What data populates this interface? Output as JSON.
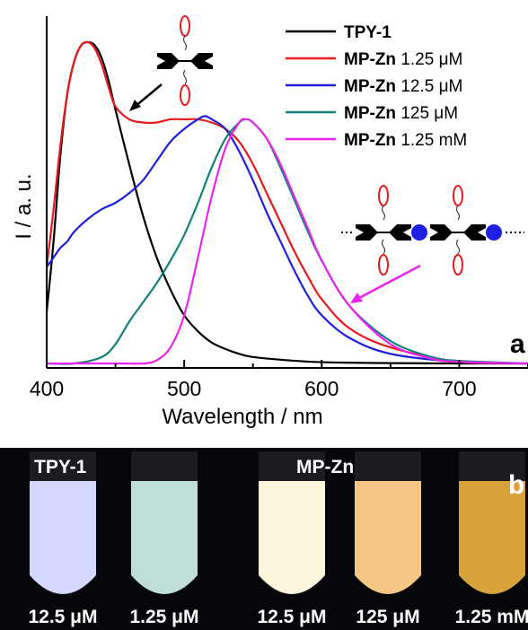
{
  "chart_data": {
    "type": "line",
    "title": "",
    "xlabel": "Wavelength / nm",
    "ylabel": "I / a. u.",
    "xlim": [
      400,
      750
    ],
    "ylim": [
      0,
      1.0
    ],
    "x_ticks": [
      "400",
      "500",
      "600",
      "700"
    ],
    "grid": false,
    "legend_placement": "top-right",
    "panel_label": "a",
    "series": [
      {
        "name": "TPY-1",
        "name_bold": "TPY-1",
        "name_rest": "",
        "color": "#000000",
        "x": [
          400,
          405,
          410,
          415,
          420,
          425,
          430,
          435,
          440,
          445,
          450,
          460,
          470,
          480,
          490,
          500,
          510,
          520,
          530,
          540,
          550,
          575,
          600,
          650,
          700,
          750
        ],
        "y": [
          0.16,
          0.38,
          0.65,
          0.84,
          0.94,
          0.99,
          1.0,
          0.99,
          0.95,
          0.88,
          0.79,
          0.62,
          0.46,
          0.33,
          0.23,
          0.15,
          0.1,
          0.065,
          0.045,
          0.03,
          0.02,
          0.01,
          0.004,
          0.001,
          0.0,
          0.0
        ]
      },
      {
        "name": "MP-Zn 1.25 μM",
        "name_bold": "MP-Zn",
        "name_rest": " 1.25 μM",
        "color": "#e8191c",
        "x": [
          400,
          405,
          410,
          415,
          420,
          425,
          430,
          435,
          440,
          445,
          450,
          460,
          470,
          480,
          490,
          500,
          510,
          520,
          530,
          540,
          550,
          560,
          570,
          580,
          590,
          600,
          620,
          650,
          700,
          750
        ],
        "y": [
          0.3,
          0.48,
          0.68,
          0.84,
          0.94,
          0.99,
          1.0,
          0.98,
          0.93,
          0.86,
          0.8,
          0.76,
          0.75,
          0.75,
          0.76,
          0.76,
          0.76,
          0.75,
          0.73,
          0.69,
          0.62,
          0.53,
          0.44,
          0.35,
          0.27,
          0.2,
          0.11,
          0.05,
          0.005,
          0.0
        ]
      },
      {
        "name": "MP-Zn 12.5 μM",
        "name_bold": "MP-Zn",
        "name_rest": " 12.5 μM",
        "color": "#1f1fe0",
        "x": [
          400,
          405,
          410,
          415,
          420,
          430,
          440,
          450,
          460,
          470,
          480,
          490,
          500,
          510,
          515,
          520,
          530,
          540,
          550,
          560,
          570,
          580,
          590,
          600,
          620,
          650,
          700,
          750
        ],
        "y": [
          0.3,
          0.33,
          0.36,
          0.38,
          0.41,
          0.45,
          0.48,
          0.5,
          0.53,
          0.57,
          0.63,
          0.69,
          0.73,
          0.76,
          0.77,
          0.76,
          0.73,
          0.66,
          0.57,
          0.47,
          0.38,
          0.29,
          0.21,
          0.15,
          0.08,
          0.03,
          0.005,
          0.0
        ]
      },
      {
        "name": "MP-Zn 125 μM",
        "name_bold": "MP-Zn",
        "name_rest": " 125  μM",
        "color": "#11827a",
        "x": [
          400,
          420,
          440,
          450,
          460,
          470,
          480,
          490,
          500,
          510,
          520,
          530,
          540,
          545,
          550,
          560,
          570,
          580,
          590,
          600,
          620,
          650,
          680,
          700,
          750
        ],
        "y": [
          0.0,
          0.0,
          0.02,
          0.06,
          0.13,
          0.19,
          0.25,
          0.32,
          0.4,
          0.5,
          0.61,
          0.7,
          0.75,
          0.76,
          0.75,
          0.7,
          0.61,
          0.51,
          0.41,
          0.32,
          0.18,
          0.07,
          0.02,
          0.008,
          0.0
        ]
      },
      {
        "name": "MP-Zn 1.25 mM",
        "name_bold": "MP-Zn",
        "name_rest": " 1.25 mM",
        "color": "#ee22ee",
        "x": [
          400,
          450,
          470,
          480,
          490,
          500,
          510,
          520,
          530,
          540,
          545,
          550,
          560,
          570,
          580,
          590,
          600,
          620,
          650,
          680,
          700,
          750
        ],
        "y": [
          0.0,
          0.0,
          0.0,
          0.01,
          0.05,
          0.15,
          0.33,
          0.52,
          0.67,
          0.75,
          0.76,
          0.75,
          0.7,
          0.62,
          0.52,
          0.42,
          0.32,
          0.18,
          0.06,
          0.015,
          0.005,
          0.0
        ]
      }
    ]
  },
  "photo": {
    "panel_label": "b",
    "top_labels": [
      "TPY-1",
      "MP-Zn"
    ],
    "vials": [
      {
        "label": "12.5 μM",
        "color": "#d4d8ff"
      },
      {
        "label": "1.25 μM",
        "color": "#bfded8"
      },
      {
        "label": "12.5 μM",
        "color": "#fbf6dc"
      },
      {
        "label": "125 μM",
        "color": "#f6c684"
      },
      {
        "label": "1.25 mM",
        "color": "#d9a33c"
      }
    ]
  }
}
